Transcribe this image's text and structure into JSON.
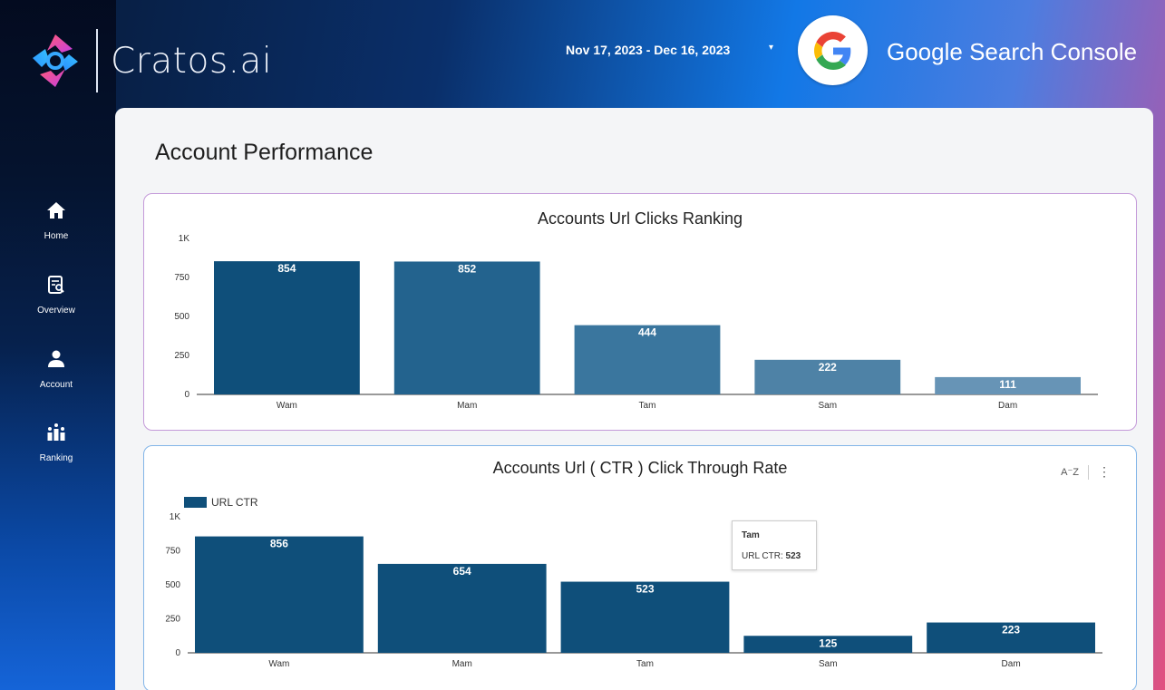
{
  "brand": {
    "name": "Cratos.ai"
  },
  "header": {
    "date_range": "Nov 17, 2023 - Dec 16, 2023",
    "source_title": "Google Search Console"
  },
  "sidebar": {
    "items": [
      {
        "label": "Home",
        "icon": "home-icon"
      },
      {
        "label": "Overview",
        "icon": "report-search-icon"
      },
      {
        "label": "Account",
        "icon": "user-icon"
      },
      {
        "label": "Ranking",
        "icon": "ranking-icon"
      }
    ]
  },
  "page": {
    "title": "Account Performance"
  },
  "colors": {
    "bar_dark": "#0f4f7a"
  },
  "tooltip": {
    "title": "Tam",
    "label": "URL CTR: ",
    "value": "523"
  },
  "chart_data": [
    {
      "type": "bar",
      "title": "Accounts Url Clicks Ranking",
      "categories": [
        "Wam",
        "Mam",
        "Tam",
        "Sam",
        "Dam"
      ],
      "values": [
        854,
        852,
        444,
        222,
        111
      ],
      "colors": [
        "#0f4f7a",
        "#23638e",
        "#3a769e",
        "#4e82a6",
        "#6794b6"
      ],
      "ylim": [
        0,
        1000
      ],
      "yticks": [
        "0",
        "250",
        "500",
        "750",
        "1K"
      ],
      "legend": "none"
    },
    {
      "type": "bar",
      "title": "Accounts Url ( CTR ) Click Through Rate",
      "categories": [
        "Wam",
        "Mam",
        "Tam",
        "Sam",
        "Dam"
      ],
      "series": [
        {
          "name": "URL CTR",
          "values": [
            856,
            654,
            523,
            125,
            223
          ]
        }
      ],
      "colors": [
        "#0f4f7a"
      ],
      "ylim": [
        0,
        1000
      ],
      "yticks": [
        "0",
        "250",
        "500",
        "750",
        "1K"
      ],
      "legend": "top-left"
    }
  ]
}
